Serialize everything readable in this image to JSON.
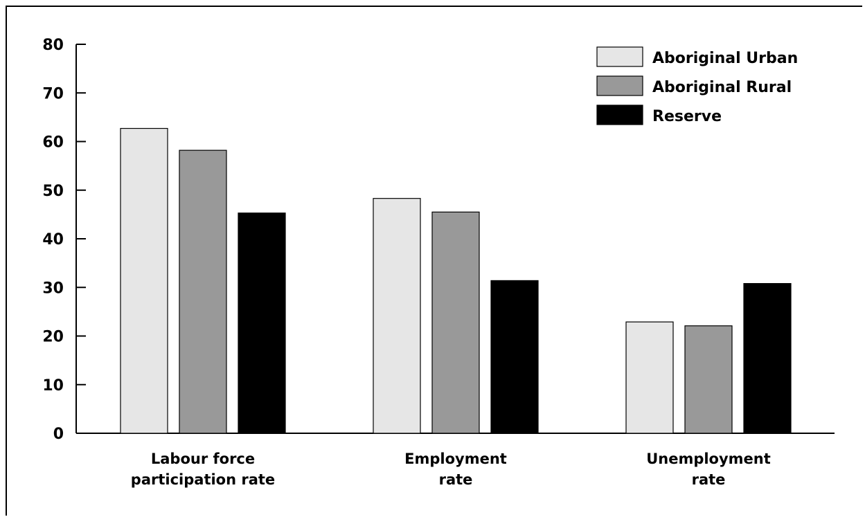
{
  "chart_data": {
    "type": "bar",
    "title": "",
    "xlabel": "",
    "ylabel": "",
    "categories": [
      [
        "Labour force",
        "participation rate"
      ],
      [
        "Employment",
        "rate"
      ],
      [
        "Unemployment",
        "rate"
      ]
    ],
    "series": [
      {
        "name": "Aboriginal Urban",
        "color": "#e6e6e6",
        "values": [
          62.7,
          48.3,
          22.9
        ]
      },
      {
        "name": "Aboriginal Rural",
        "color": "#999999",
        "values": [
          58.2,
          45.5,
          22.1
        ]
      },
      {
        "name": "Reserve",
        "color": "#000000",
        "values": [
          45.3,
          31.4,
          30.8
        ]
      }
    ],
    "yticks": [
      "0",
      "10",
      "20",
      "30",
      "40",
      "50",
      "60",
      "70",
      "80"
    ],
    "ylim": [
      0,
      80
    ],
    "grid": false,
    "legend_position": "top-right"
  }
}
